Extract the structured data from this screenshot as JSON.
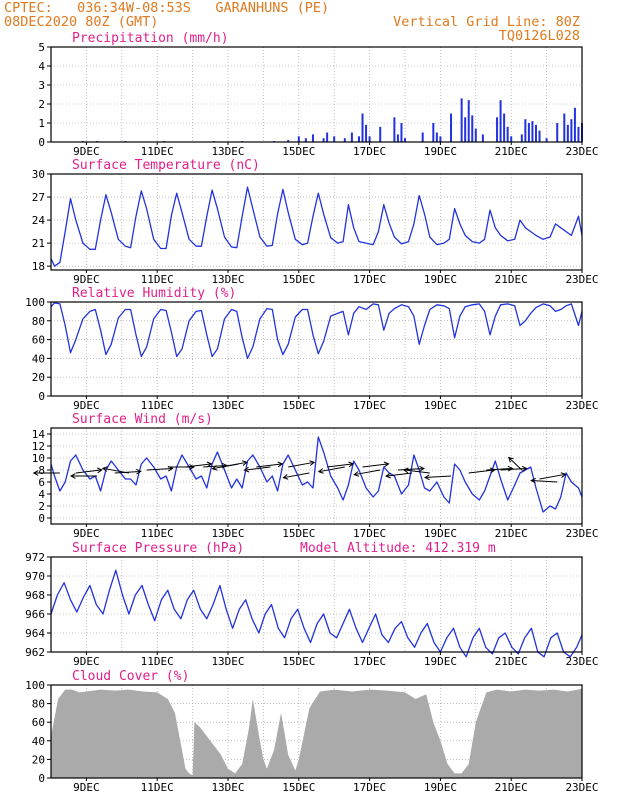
{
  "header": {
    "line1_left": "CPTEC:   036:34W-08:53S   GARANHUNS (PE)",
    "line2_left": "08DEC2020 80Z (GMT)",
    "line1_right": "Vertical Grid Line: 80Z",
    "line2_right": "TQ0126L028"
  },
  "colors": {
    "header": "#e07a1f",
    "title": "#e0218a",
    "series": "#2233dd",
    "cloud": "#aaaaaa",
    "arrow": "#000000"
  },
  "chart_data": [
    {
      "type": "bar",
      "title": "Precipitation (mm/h)",
      "ylim": [
        0,
        5
      ],
      "yticks": [
        0,
        1,
        2,
        3,
        4,
        5
      ],
      "xticks": [
        "9DEC",
        "11DEC",
        "13DEC",
        "15DEC",
        "17DEC",
        "19DEC",
        "21DEC",
        "23DEC"
      ],
      "x_days": [
        8.9,
        9.3,
        10.1,
        11.2,
        12.6,
        13.4,
        14.3,
        14.7,
        15.0,
        15.2,
        15.4,
        15.7,
        15.8,
        16.0,
        16.3,
        16.5,
        16.7,
        16.8,
        16.9,
        17.0,
        17.3,
        17.7,
        17.8,
        17.9,
        18.0,
        18.5,
        18.8,
        18.9,
        19.0,
        19.3,
        19.6,
        19.7,
        19.8,
        19.9,
        20.0,
        20.2,
        20.6,
        20.7,
        20.8,
        20.9,
        21.0,
        21.3,
        21.4,
        21.5,
        21.6,
        21.7,
        21.8,
        22.0,
        22.3,
        22.5,
        22.6,
        22.7,
        22.8,
        22.9,
        23.0
      ],
      "values": [
        0.05,
        0.05,
        0.05,
        0.05,
        0.05,
        0.05,
        0.05,
        0.1,
        0.3,
        0.2,
        0.4,
        0.2,
        0.5,
        0.3,
        0.2,
        0.5,
        0.3,
        1.5,
        0.9,
        0.3,
        0.8,
        1.3,
        0.4,
        1.0,
        0.2,
        0.5,
        1.0,
        0.5,
        0.3,
        1.5,
        2.3,
        1.3,
        2.2,
        1.4,
        0.7,
        0.4,
        1.3,
        2.2,
        1.5,
        0.8,
        0.3,
        0.4,
        1.2,
        1.0,
        1.1,
        0.9,
        0.6,
        0.2,
        1.0,
        1.5,
        0.9,
        1.2,
        1.8,
        0.8,
        1.0
      ]
    },
    {
      "type": "line",
      "title": "Surface Temperature (nC)",
      "ylim": [
        17.5,
        30
      ],
      "yticks": [
        18,
        21,
        24,
        27,
        30
      ],
      "xticks": [
        "9DEC",
        "11DEC",
        "13DEC",
        "15DEC",
        "17DEC",
        "19DEC",
        "21DEC",
        "23DEC"
      ],
      "x_days": [
        8.0,
        8.1,
        8.25,
        8.4,
        8.55,
        8.7,
        8.9,
        9.1,
        9.25,
        9.4,
        9.55,
        9.7,
        9.9,
        10.1,
        10.25,
        10.4,
        10.55,
        10.7,
        10.9,
        11.1,
        11.25,
        11.4,
        11.55,
        11.7,
        11.9,
        12.1,
        12.25,
        12.4,
        12.55,
        12.7,
        12.9,
        13.1,
        13.25,
        13.4,
        13.55,
        13.7,
        13.9,
        14.1,
        14.25,
        14.4,
        14.55,
        14.7,
        14.9,
        15.1,
        15.25,
        15.4,
        15.55,
        15.7,
        15.9,
        16.1,
        16.25,
        16.4,
        16.55,
        16.7,
        16.9,
        17.1,
        17.25,
        17.4,
        17.55,
        17.7,
        17.9,
        18.1,
        18.25,
        18.4,
        18.55,
        18.7,
        18.9,
        19.1,
        19.25,
        19.4,
        19.55,
        19.7,
        19.9,
        20.1,
        20.25,
        20.4,
        20.55,
        20.7,
        20.9,
        21.1,
        21.25,
        21.4,
        21.55,
        21.7,
        21.9,
        22.1,
        22.25,
        22.4,
        22.55,
        22.7,
        22.9,
        23.0
      ],
      "values": [
        19.0,
        18.0,
        18.5,
        22.5,
        26.8,
        24.0,
        21.0,
        20.2,
        20.2,
        24.0,
        27.3,
        25.0,
        21.5,
        20.6,
        20.4,
        24.5,
        27.8,
        25.5,
        21.5,
        20.3,
        20.3,
        24.6,
        27.5,
        25.0,
        21.5,
        20.6,
        20.6,
        24.5,
        27.9,
        25.5,
        21.8,
        20.5,
        20.4,
        24.5,
        28.3,
        25.5,
        21.8,
        20.6,
        20.7,
        24.8,
        28.0,
        25.0,
        21.5,
        20.8,
        21.0,
        24.5,
        27.5,
        24.8,
        21.7,
        21.0,
        21.2,
        26.0,
        23.0,
        21.2,
        21.0,
        20.8,
        22.5,
        26.0,
        23.6,
        21.8,
        20.9,
        21.2,
        23.5,
        27.2,
        24.8,
        21.8,
        20.8,
        21.0,
        21.5,
        25.5,
        23.5,
        22.0,
        21.2,
        21.0,
        21.5,
        25.3,
        23.0,
        22.0,
        21.3,
        21.5,
        24.0,
        23.0,
        22.5,
        22.0,
        21.5,
        21.8,
        23.5,
        23.0,
        22.5,
        22.0,
        24.5,
        22.0
      ]
    },
    {
      "type": "line",
      "title": "Relative Humidity (%)",
      "ylim": [
        0,
        100
      ],
      "yticks": [
        0,
        20,
        40,
        60,
        80,
        100
      ],
      "xticks": [
        "9DEC",
        "11DEC",
        "13DEC",
        "15DEC",
        "17DEC",
        "19DEC",
        "21DEC",
        "23DEC"
      ],
      "x_days": [
        8.0,
        8.1,
        8.25,
        8.4,
        8.55,
        8.7,
        8.9,
        9.1,
        9.25,
        9.4,
        9.55,
        9.7,
        9.9,
        10.1,
        10.25,
        10.4,
        10.55,
        10.7,
        10.9,
        11.1,
        11.25,
        11.4,
        11.55,
        11.7,
        11.9,
        12.1,
        12.25,
        12.4,
        12.55,
        12.7,
        12.9,
        13.1,
        13.25,
        13.4,
        13.55,
        13.7,
        13.9,
        14.1,
        14.25,
        14.4,
        14.55,
        14.7,
        14.9,
        15.1,
        15.25,
        15.4,
        15.55,
        15.7,
        15.9,
        16.1,
        16.25,
        16.4,
        16.55,
        16.7,
        16.9,
        17.1,
        17.25,
        17.4,
        17.55,
        17.7,
        17.9,
        18.1,
        18.25,
        18.4,
        18.55,
        18.7,
        18.9,
        19.1,
        19.25,
        19.4,
        19.55,
        19.7,
        19.9,
        20.1,
        20.25,
        20.4,
        20.55,
        20.7,
        20.9,
        21.1,
        21.25,
        21.4,
        21.55,
        21.7,
        21.9,
        22.1,
        22.25,
        22.4,
        22.55,
        22.7,
        22.9,
        23.0
      ],
      "values": [
        95.0,
        99.0,
        98.0,
        75.0,
        46.0,
        60.0,
        82.0,
        90.0,
        92.0,
        70.0,
        44.0,
        55.0,
        83.0,
        92.0,
        92.0,
        65.0,
        42.0,
        52.0,
        82.0,
        92.0,
        91.0,
        68.0,
        42.0,
        50.0,
        80.0,
        90.0,
        91.0,
        65.0,
        42.0,
        50.0,
        82.0,
        92.0,
        90.0,
        62.0,
        40.0,
        52.0,
        82.0,
        93.0,
        92.0,
        60.0,
        44.0,
        55.0,
        84.0,
        92.0,
        92.0,
        65.0,
        45.0,
        58.0,
        85.0,
        88.0,
        90.0,
        65.0,
        88.0,
        95.0,
        92.0,
        98.0,
        97.0,
        70.0,
        88.0,
        93.0,
        97.0,
        95.0,
        85.0,
        55.0,
        75.0,
        92.0,
        97.0,
        96.0,
        93.0,
        62.0,
        85.0,
        95.0,
        97.0,
        98.0,
        90.0,
        65.0,
        85.0,
        97.0,
        98.0,
        96.0,
        75.0,
        80.0,
        88.0,
        94.0,
        98.0,
        96.0,
        90.0,
        92.0,
        96.0,
        98.0,
        75.0,
        90.0
      ]
    },
    {
      "type": "line",
      "title": "Surface Wind (m/s)",
      "ylim": [
        -1,
        15
      ],
      "yticks": [
        0,
        2,
        4,
        6,
        8,
        10,
        12,
        14
      ],
      "xticks": [
        "9DEC",
        "11DEC",
        "13DEC",
        "15DEC",
        "17DEC",
        "19DEC",
        "21DEC",
        "23DEC"
      ],
      "x_days": [
        8.0,
        8.1,
        8.25,
        8.4,
        8.55,
        8.7,
        8.9,
        9.1,
        9.25,
        9.4,
        9.55,
        9.7,
        9.9,
        10.1,
        10.25,
        10.4,
        10.55,
        10.7,
        10.9,
        11.1,
        11.25,
        11.4,
        11.55,
        11.7,
        11.9,
        12.1,
        12.25,
        12.4,
        12.55,
        12.7,
        12.9,
        13.1,
        13.25,
        13.4,
        13.55,
        13.7,
        13.9,
        14.1,
        14.25,
        14.4,
        14.55,
        14.7,
        14.9,
        15.1,
        15.25,
        15.4,
        15.55,
        15.7,
        15.9,
        16.1,
        16.25,
        16.4,
        16.55,
        16.7,
        16.9,
        17.1,
        17.25,
        17.4,
        17.55,
        17.7,
        17.9,
        18.1,
        18.25,
        18.4,
        18.55,
        18.7,
        18.9,
        19.1,
        19.25,
        19.4,
        19.55,
        19.7,
        19.9,
        20.1,
        20.25,
        20.4,
        20.55,
        20.7,
        20.9,
        21.1,
        21.25,
        21.4,
        21.55,
        21.7,
        21.9,
        22.1,
        22.25,
        22.4,
        22.55,
        22.7,
        22.9,
        23.0
      ],
      "values": [
        9.0,
        7.0,
        4.5,
        6.0,
        9.5,
        10.5,
        8.0,
        6.5,
        7.0,
        4.5,
        8.0,
        9.5,
        8.0,
        6.5,
        6.5,
        5.5,
        9.0,
        10.0,
        8.5,
        6.5,
        7.0,
        4.5,
        8.5,
        10.5,
        8.5,
        6.5,
        7.0,
        5.0,
        9.0,
        11.0,
        8.0,
        5.0,
        6.5,
        5.0,
        9.5,
        10.5,
        8.5,
        6.0,
        7.0,
        4.5,
        9.0,
        10.5,
        8.0,
        5.5,
        6.0,
        5.0,
        13.5,
        11.0,
        7.0,
        5.0,
        3.0,
        5.5,
        9.5,
        8.0,
        5.0,
        3.5,
        4.5,
        8.5,
        7.5,
        7.0,
        4.0,
        5.5,
        10.5,
        8.0,
        5.0,
        4.5,
        6.0,
        3.5,
        2.5,
        9.0,
        8.0,
        6.0,
        4.0,
        3.0,
        4.5,
        7.0,
        9.5,
        6.5,
        3.0,
        5.5,
        7.5,
        8.0,
        8.5,
        5.0,
        1.0,
        2.0,
        1.5,
        3.5,
        7.5,
        6.0,
        5.0,
        3.5
      ],
      "arrows": {
        "x_days": [
          8.25,
          8.7,
          9.3,
          9.8,
          10.2,
          10.7,
          11.3,
          11.8,
          12.3,
          12.8,
          13.3,
          13.8,
          14.2,
          14.7,
          15.3,
          15.8,
          16.3,
          16.8,
          17.3,
          17.8,
          18.2,
          18.7,
          19.3,
          19.8,
          20.3,
          20.7,
          21.3,
          21.8,
          22.3
        ],
        "y": [
          7.5,
          7.5,
          7.0,
          7.5,
          7.5,
          8.0,
          8.5,
          8.5,
          8.5,
          8.5,
          9.0,
          8.5,
          8.5,
          8.5,
          7.5,
          8.5,
          8.5,
          8.5,
          8.0,
          8.0,
          7.5,
          7.5,
          7.0,
          7.5,
          8.0,
          8.0,
          8.0,
          6.5,
          6.0
        ],
        "dx": [
          -1.0,
          1.0,
          -1.0,
          1.0,
          -1.0,
          1.0,
          1.0,
          1.0,
          0.9,
          1.0,
          -1.0,
          1.0,
          -1.0,
          1.0,
          -1.0,
          1.0,
          -1.0,
          1.0,
          -1.0,
          1.0,
          -1.0,
          -1.0,
          -1.0,
          1.0,
          1.0,
          1.0,
          -0.5,
          1.0,
          -1.0
        ],
        "dy": [
          0.0,
          0.2,
          0.0,
          0.1,
          0.3,
          0.1,
          0.0,
          0.2,
          0.1,
          0.3,
          -0.3,
          0.2,
          -0.2,
          0.3,
          -0.3,
          0.2,
          -0.3,
          0.2,
          -0.3,
          0.1,
          -0.2,
          0.2,
          -0.1,
          0.2,
          0.1,
          0.1,
          0.8,
          0.3,
          0.1
        ]
      }
    },
    {
      "type": "line",
      "title": "Surface Pressure (hPa)",
      "annotation": "Model Altitude: 412.319 m",
      "ylim": [
        962,
        972
      ],
      "yticks": [
        962,
        964,
        966,
        968,
        970,
        972
      ],
      "xticks": [
        "9DEC",
        "11DEC",
        "13DEC",
        "15DEC",
        "17DEC",
        "19DEC",
        "21DEC",
        "23DEC"
      ],
      "x_days": [
        8.0,
        8.18,
        8.37,
        8.55,
        8.73,
        8.92,
        9.1,
        9.28,
        9.47,
        9.65,
        9.83,
        10.02,
        10.2,
        10.38,
        10.57,
        10.75,
        10.93,
        11.12,
        11.3,
        11.48,
        11.67,
        11.85,
        12.03,
        12.22,
        12.4,
        12.58,
        12.77,
        12.95,
        13.13,
        13.32,
        13.5,
        13.68,
        13.87,
        14.05,
        14.23,
        14.42,
        14.6,
        14.78,
        14.97,
        15.15,
        15.33,
        15.52,
        15.7,
        15.88,
        16.07,
        16.25,
        16.43,
        16.62,
        16.8,
        16.98,
        17.17,
        17.35,
        17.53,
        17.72,
        17.9,
        18.08,
        18.27,
        18.45,
        18.63,
        18.82,
        19.0,
        19.18,
        19.37,
        19.55,
        19.73,
        19.92,
        20.1,
        20.28,
        20.47,
        20.65,
        20.83,
        21.02,
        21.2,
        21.38,
        21.57,
        21.75,
        21.93,
        22.12,
        22.3,
        22.48,
        22.67,
        22.85,
        23.0
      ],
      "values": [
        966.0,
        968.0,
        969.3,
        967.5,
        966.2,
        967.8,
        969.0,
        967.0,
        966.0,
        968.5,
        970.6,
        968.0,
        966.0,
        968.0,
        969.0,
        967.0,
        965.3,
        967.5,
        968.5,
        966.5,
        965.5,
        967.5,
        968.5,
        966.5,
        965.5,
        967.0,
        969.0,
        966.5,
        964.5,
        966.5,
        967.5,
        965.5,
        964.0,
        966.0,
        967.0,
        964.5,
        963.5,
        965.5,
        966.5,
        964.5,
        963.0,
        965.0,
        966.0,
        964.0,
        963.5,
        965.0,
        966.5,
        964.5,
        963.0,
        964.5,
        966.0,
        963.8,
        963.0,
        964.5,
        965.2,
        963.5,
        962.5,
        964.0,
        965.0,
        963.0,
        962.0,
        963.5,
        964.5,
        962.5,
        961.5,
        963.5,
        964.5,
        962.5,
        961.8,
        963.5,
        964.0,
        962.5,
        961.8,
        963.5,
        964.5,
        962.0,
        961.5,
        963.5,
        964.0,
        962.0,
        961.5,
        962.5,
        963.8
      ]
    },
    {
      "type": "area",
      "title": "Cloud Cover (%)",
      "ylim": [
        0,
        100
      ],
      "yticks": [
        0,
        20,
        40,
        60,
        80,
        100
      ],
      "xticks": [
        "9DEC",
        "11DEC",
        "13DEC",
        "15DEC",
        "17DEC",
        "19DEC",
        "21DEC",
        "23DEC"
      ],
      "x_days": [
        8.0,
        8.2,
        8.4,
        8.6,
        8.8,
        9.0,
        9.4,
        9.8,
        10.2,
        10.6,
        11.0,
        11.3,
        11.5,
        11.7,
        11.8,
        11.9,
        12.0,
        12.05,
        12.2,
        12.5,
        12.8,
        13.0,
        13.2,
        13.4,
        13.6,
        13.7,
        13.9,
        14.0,
        14.1,
        14.3,
        14.5,
        14.7,
        14.9,
        15.0,
        15.3,
        15.6,
        16.0,
        16.5,
        17.0,
        17.5,
        18.0,
        18.3,
        18.6,
        18.8,
        19.0,
        19.2,
        19.4,
        19.6,
        19.8,
        20.0,
        20.3,
        20.6,
        21.0,
        21.4,
        21.8,
        22.2,
        22.6,
        23.0
      ],
      "values": [
        45,
        85,
        95,
        95,
        92,
        93,
        95,
        94,
        95,
        93,
        92,
        85,
        70,
        30,
        10,
        5,
        3,
        60,
        55,
        40,
        25,
        10,
        5,
        15,
        55,
        85,
        40,
        20,
        10,
        30,
        70,
        25,
        8,
        20,
        75,
        93,
        95,
        93,
        95,
        94,
        92,
        85,
        90,
        60,
        40,
        15,
        5,
        5,
        15,
        60,
        92,
        95,
        93,
        95,
        94,
        95,
        93,
        96
      ]
    }
  ]
}
